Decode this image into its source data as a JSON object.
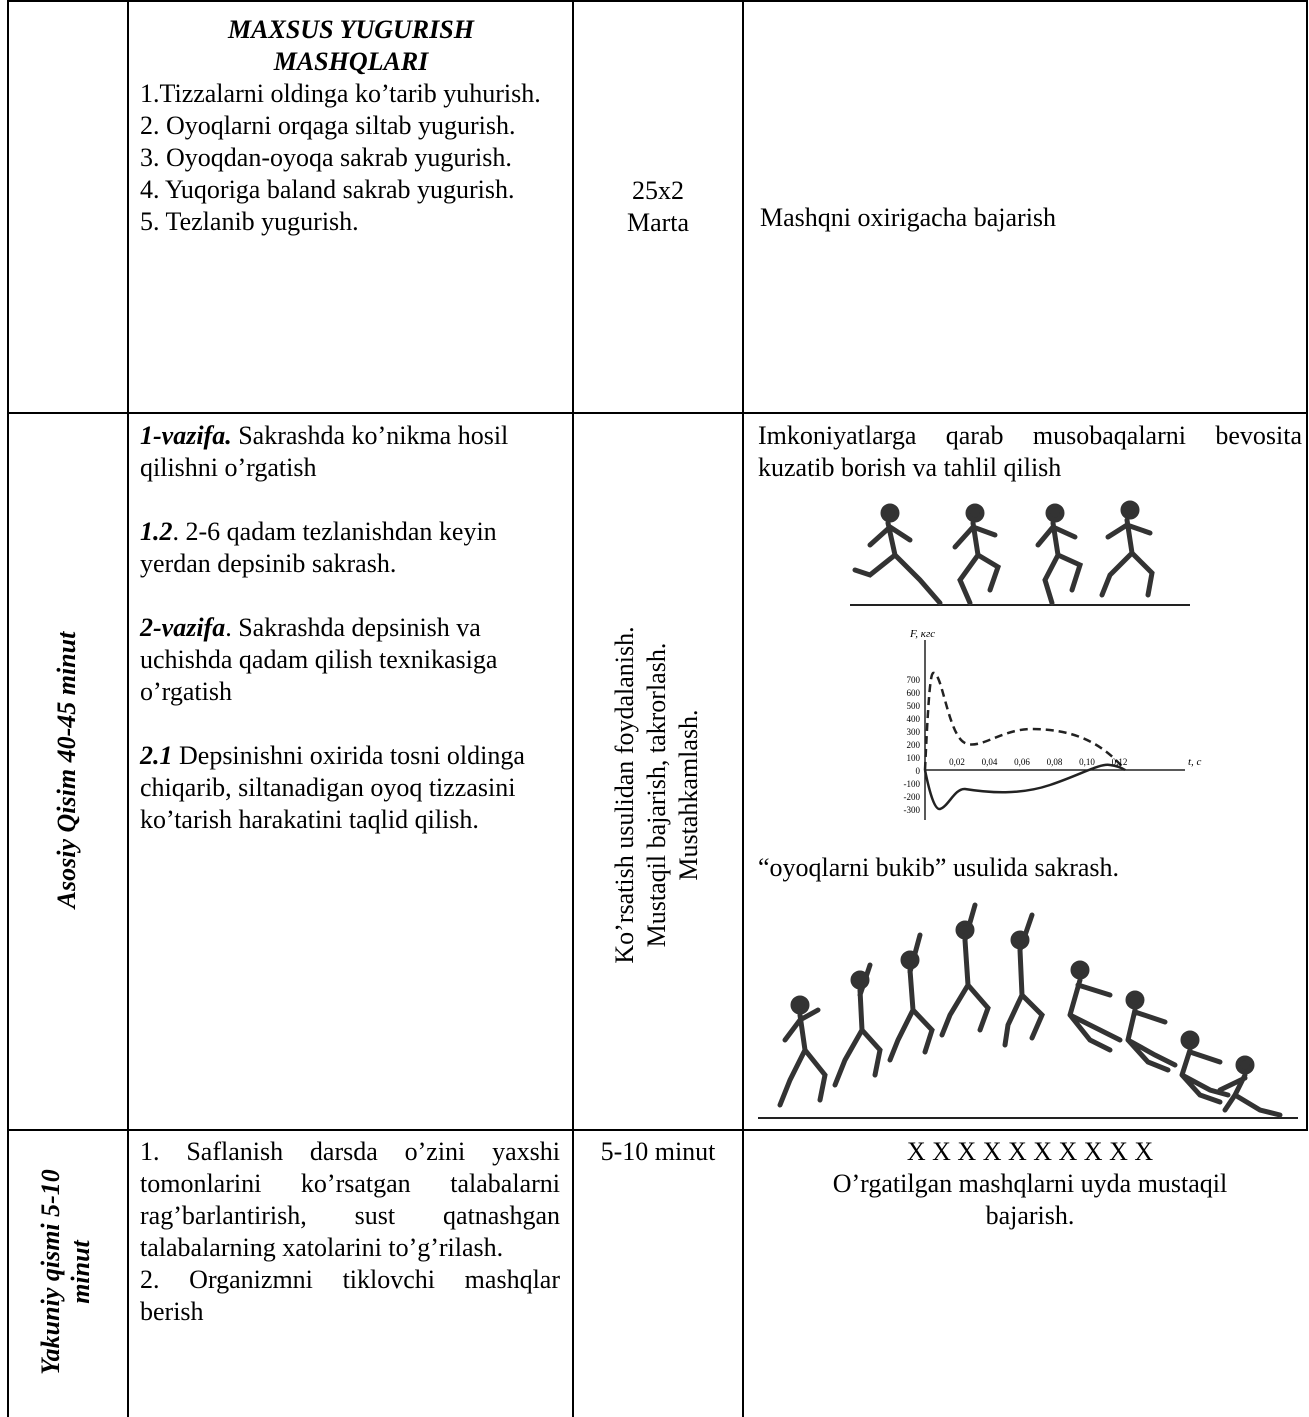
{
  "table": {
    "rows": [
      {
        "plan": {
          "heading": "MAXSUS YUGURISH MASHQLARI",
          "items": [
            "1.Tizzalarni oldinga ko’tarib yuhurish.",
            "2. Oyoqlarni orqaga siltab yugurish.",
            "3. Oyoqdan-oyoqa sakrab yugurish.",
            "4. Yuqoriga baland sakrab yugurish.",
            "5. Tezlanib yugurish."
          ]
        },
        "dose": [
          "25x2",
          "Marta"
        ],
        "notes": [
          "Mashqni oxirigacha bajarish"
        ]
      },
      {
        "section": "Asosiy Qisim 40-45 minut",
        "plan": {
          "tasks": [
            {
              "lead": "1-vazifa.",
              "text": " Sakrashda ko’nikma hosil qilishni o’rgatish"
            },
            {
              "lead": "1.2",
              "text": ". 2-6 qadam tezlanishdan keyin yerdan depsinib sakrash."
            },
            {
              "lead": "2-vazifa",
              "text": ". Sakrashda depsinish va uchishda qadam qilish texnikasiga o’rgatish"
            },
            {
              "lead": "2.1",
              "text": " Depsinishni oxirida tosni oldinga chiqarib, siltanadigan oyoq tizzasini ko’tarish harakatini taqlid qilish."
            }
          ]
        },
        "method": [
          "Ko’rsatish usulidan foydalanish.",
          "Mustaqil bajarish, takrorlash.",
          "Mustahkamlash."
        ],
        "notes": [
          "Imkoniyatlarga qarab musobaqalarni bevosita kuzatib borish va tahlil qilish",
          "“oyoqlarni bukib” usulida sakrash."
        ],
        "graph": {
          "y_label": "F, кгс",
          "x_label": "t, c",
          "yticks": [
            "700",
            "600",
            "500",
            "400",
            "300",
            "200",
            "100",
            "0",
            "-100",
            "-200",
            "-300"
          ],
          "xticks": [
            "0,02",
            "0,04",
            "0,06",
            "0,08",
            "0,10",
            "0,12"
          ]
        }
      },
      {
        "section": [
          "Yakuniy qismi 5-10",
          "minut"
        ],
        "plan": {
          "items": [
            "1. Saflanish darsda o’zini yaxshi tomonlarini ko’rsatgan talabalarni rag’barlantirish, sust qatnashgan talabalarning xatolarini to’g’rilash.",
            "2. Organizmni tiklovchi mashqlar berish"
          ]
        },
        "dose": [
          "5-10 minut"
        ],
        "notes": [
          "X X X X X X X X X X",
          "O’rgatilgan mashqlarni uyda mustaqil bajarish."
        ]
      }
    ]
  }
}
